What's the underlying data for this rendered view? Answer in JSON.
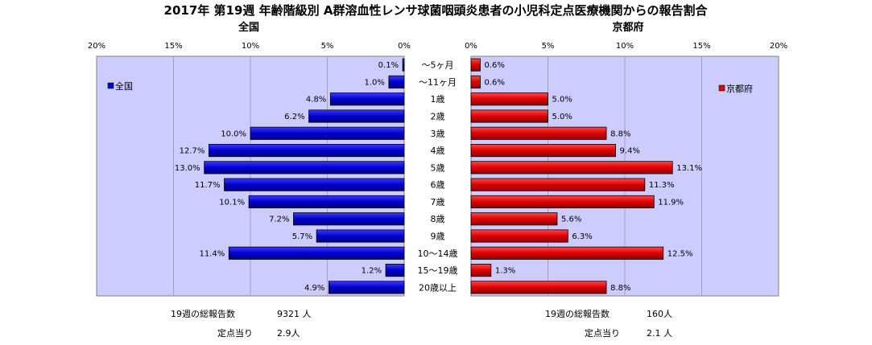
{
  "chart_data": {
    "type": "bar",
    "orientation": "horizontal-butterfly",
    "title": "2017年 第19週 年齢階級別 A群溶血性レンサ球菌咽頭炎患者の小児科定点医療機関からの報告割合",
    "categories": [
      "～5ヶ月",
      "～11ヶ月",
      "1歳",
      "2歳",
      "3歳",
      "4歳",
      "5歳",
      "6歳",
      "7歳",
      "8歳",
      "9歳",
      "10～14歳",
      "15～19歳",
      "20歳以上"
    ],
    "series": [
      {
        "name": "全国",
        "panel_title": "全国",
        "color": "#0000cc",
        "values": [
          0.1,
          1.0,
          4.8,
          6.2,
          10.0,
          12.7,
          13.0,
          11.7,
          10.1,
          7.2,
          5.7,
          11.4,
          1.2,
          4.9
        ],
        "labels": [
          "0.1%",
          "1.0%",
          "4.8%",
          "6.2%",
          "10.0%",
          "12.7%",
          "13.0%",
          "11.7%",
          "10.1%",
          "7.2%",
          "5.7%",
          "11.4%",
          "1.2%",
          "4.9%"
        ],
        "legend": "全国",
        "xlim": [
          0,
          20
        ],
        "ticks": [
          "20%",
          "15%",
          "10%",
          "5%",
          "0%"
        ],
        "tick_values": [
          20,
          15,
          10,
          5,
          0
        ],
        "total_label": "19週の総報告数",
        "total_value": "9321 人",
        "per_site_label": "定点当り",
        "per_site_value": "2.9人"
      },
      {
        "name": "京都府",
        "panel_title": "京都府",
        "color": "#dd0000",
        "values": [
          0.6,
          0.6,
          5.0,
          5.0,
          8.8,
          9.4,
          13.1,
          11.3,
          11.9,
          5.6,
          6.3,
          12.5,
          1.3,
          8.8
        ],
        "labels": [
          "0.6%",
          "0.6%",
          "5.0%",
          "5.0%",
          "8.8%",
          "9.4%",
          "13.1%",
          "11.3%",
          "11.9%",
          "5.6%",
          "6.3%",
          "12.5%",
          "1.3%",
          "8.8%"
        ],
        "legend": "京都府",
        "xlim": [
          0,
          20
        ],
        "ticks": [
          "0%",
          "5%",
          "10%",
          "15%",
          "20%"
        ],
        "tick_values": [
          0,
          5,
          10,
          15,
          20
        ],
        "total_label": "19週の総報告数",
        "total_value": "160人",
        "per_site_label": "定点当り",
        "per_site_value": "2.1 人"
      }
    ],
    "plot_background": "#ccccff",
    "grid": true,
    "legend_placement": "inside-top"
  }
}
